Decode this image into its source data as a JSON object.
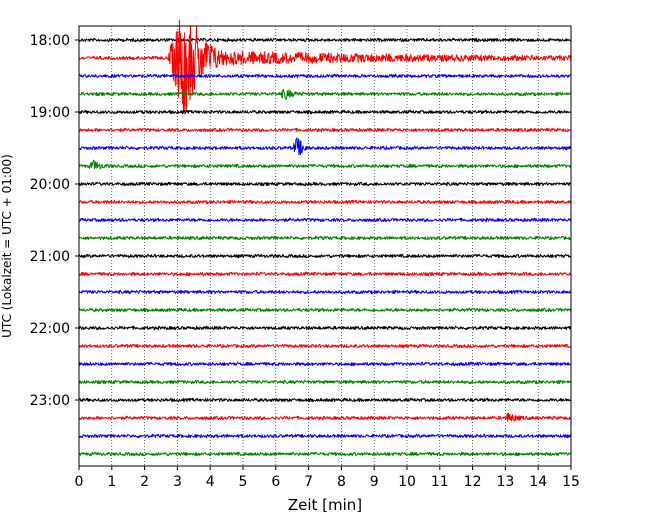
{
  "chart_data": {
    "type": "line",
    "title": "",
    "xlabel": "Zeit  [min]",
    "ylabel": "UTC (Lokalzeit = UTC + 01:00)",
    "xlim": [
      0,
      15
    ],
    "x_ticks": [
      0,
      1,
      2,
      3,
      4,
      5,
      6,
      7,
      8,
      9,
      10,
      11,
      12,
      13,
      14,
      15
    ],
    "x_tick_labels": [
      "0",
      "1",
      "2",
      "3",
      "4",
      "5",
      "6",
      "7",
      "8",
      "9",
      "10",
      "11",
      "12",
      "13",
      "14",
      "15"
    ],
    "y_tick_labels": [
      "18:00",
      "19:00",
      "20:00",
      "21:00",
      "22:00",
      "23:00"
    ],
    "row_interval_minutes": 15,
    "row_start": "18:00",
    "row_count": 24,
    "row_colors": [
      "#000000",
      "#ff0000",
      "#0000ff",
      "#008000"
    ],
    "grid": {
      "x": true,
      "y": false,
      "style": "dotted"
    },
    "events": [
      {
        "row": 1,
        "start_min": 2.7,
        "end_min": 15,
        "peak_min": 3.2,
        "amplitude": "very large"
      },
      {
        "row": 3,
        "start_min": 6.1,
        "end_min": 7.5,
        "peak_min": 6.3,
        "amplitude": "small"
      },
      {
        "row": 6,
        "start_min": 6.5,
        "end_min": 7.0,
        "peak_min": 6.65,
        "amplitude": "medium"
      },
      {
        "row": 7,
        "start_min": 0.3,
        "end_min": 0.9,
        "peak_min": 0.45,
        "amplitude": "small"
      },
      {
        "row": 21,
        "start_min": 13.0,
        "end_min": 13.8,
        "peak_min": 13.1,
        "amplitude": "small"
      }
    ]
  }
}
